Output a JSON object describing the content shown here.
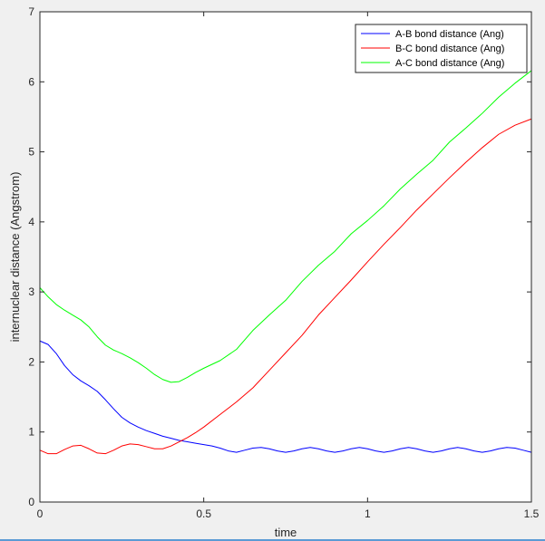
{
  "chart_data": {
    "type": "line",
    "xlabel": "time",
    "ylabel": "internuclear distance (Angstrom)",
    "xlim": [
      0,
      1.5
    ],
    "ylim": [
      0,
      7
    ],
    "xticks": [
      "0",
      "0.5",
      "1",
      "1.5"
    ],
    "xtick_values": [
      0,
      0.5,
      1,
      1.5
    ],
    "yticks": [
      "0",
      "1",
      "2",
      "3",
      "4",
      "5",
      "6",
      "7"
    ],
    "ytick_values": [
      0,
      1,
      2,
      3,
      4,
      5,
      6,
      7
    ],
    "grid": false,
    "legend_position": "top-right",
    "series": [
      {
        "name": "A-B bond distance (Ang)",
        "color": "#0000ff",
        "x": [
          0,
          0.025,
          0.05,
          0.075,
          0.1,
          0.125,
          0.15,
          0.175,
          0.2,
          0.225,
          0.25,
          0.275,
          0.3,
          0.325,
          0.35,
          0.375,
          0.4,
          0.425,
          0.45,
          0.475,
          0.5,
          0.525,
          0.55,
          0.575,
          0.6,
          0.625,
          0.65,
          0.675,
          0.7,
          0.725,
          0.75,
          0.775,
          0.8,
          0.825,
          0.85,
          0.875,
          0.9,
          0.925,
          0.95,
          0.975,
          1.0,
          1.025,
          1.05,
          1.075,
          1.1,
          1.125,
          1.15,
          1.175,
          1.2,
          1.225,
          1.25,
          1.275,
          1.3,
          1.325,
          1.35,
          1.375,
          1.4,
          1.425,
          1.45,
          1.475,
          1.5
        ],
        "y": [
          2.3,
          2.25,
          2.12,
          1.95,
          1.82,
          1.73,
          1.66,
          1.58,
          1.46,
          1.33,
          1.21,
          1.13,
          1.07,
          1.02,
          0.98,
          0.94,
          0.91,
          0.88,
          0.86,
          0.84,
          0.82,
          0.8,
          0.77,
          0.73,
          0.71,
          0.74,
          0.77,
          0.78,
          0.76,
          0.73,
          0.71,
          0.73,
          0.76,
          0.78,
          0.76,
          0.73,
          0.71,
          0.73,
          0.76,
          0.78,
          0.76,
          0.73,
          0.71,
          0.73,
          0.76,
          0.78,
          0.76,
          0.73,
          0.71,
          0.73,
          0.76,
          0.78,
          0.76,
          0.73,
          0.71,
          0.73,
          0.76,
          0.78,
          0.77,
          0.74,
          0.71
        ]
      },
      {
        "name": "B-C bond distance (Ang)",
        "color": "#ff0000",
        "x": [
          0,
          0.025,
          0.05,
          0.075,
          0.1,
          0.125,
          0.15,
          0.175,
          0.2,
          0.225,
          0.25,
          0.275,
          0.3,
          0.325,
          0.35,
          0.375,
          0.4,
          0.425,
          0.45,
          0.475,
          0.5,
          0.55,
          0.6,
          0.65,
          0.7,
          0.75,
          0.8,
          0.85,
          0.9,
          0.95,
          1.0,
          1.05,
          1.1,
          1.15,
          1.2,
          1.25,
          1.3,
          1.35,
          1.4,
          1.45,
          1.5
        ],
        "y": [
          0.74,
          0.69,
          0.69,
          0.75,
          0.8,
          0.81,
          0.76,
          0.7,
          0.69,
          0.74,
          0.8,
          0.83,
          0.82,
          0.79,
          0.76,
          0.76,
          0.8,
          0.86,
          0.92,
          0.99,
          1.07,
          1.25,
          1.43,
          1.63,
          1.88,
          2.13,
          2.38,
          2.67,
          2.92,
          3.17,
          3.43,
          3.68,
          3.92,
          4.17,
          4.4,
          4.63,
          4.85,
          5.06,
          5.25,
          5.38,
          5.47
        ]
      },
      {
        "name": "A-C bond distance (Ang)",
        "color": "#00ff00",
        "x": [
          0,
          0.025,
          0.05,
          0.075,
          0.1,
          0.125,
          0.15,
          0.175,
          0.2,
          0.225,
          0.25,
          0.275,
          0.3,
          0.325,
          0.35,
          0.375,
          0.4,
          0.425,
          0.45,
          0.475,
          0.5,
          0.55,
          0.6,
          0.65,
          0.7,
          0.75,
          0.8,
          0.85,
          0.9,
          0.95,
          1.0,
          1.05,
          1.1,
          1.15,
          1.2,
          1.25,
          1.3,
          1.35,
          1.4,
          1.45,
          1.5
        ],
        "y": [
          3.06,
          2.93,
          2.82,
          2.74,
          2.67,
          2.6,
          2.5,
          2.36,
          2.24,
          2.17,
          2.12,
          2.06,
          1.99,
          1.91,
          1.82,
          1.75,
          1.71,
          1.72,
          1.78,
          1.85,
          1.91,
          2.02,
          2.18,
          2.45,
          2.67,
          2.88,
          3.15,
          3.38,
          3.58,
          3.83,
          4.02,
          4.23,
          4.47,
          4.68,
          4.88,
          5.14,
          5.34,
          5.55,
          5.78,
          5.98,
          6.16
        ]
      }
    ]
  }
}
